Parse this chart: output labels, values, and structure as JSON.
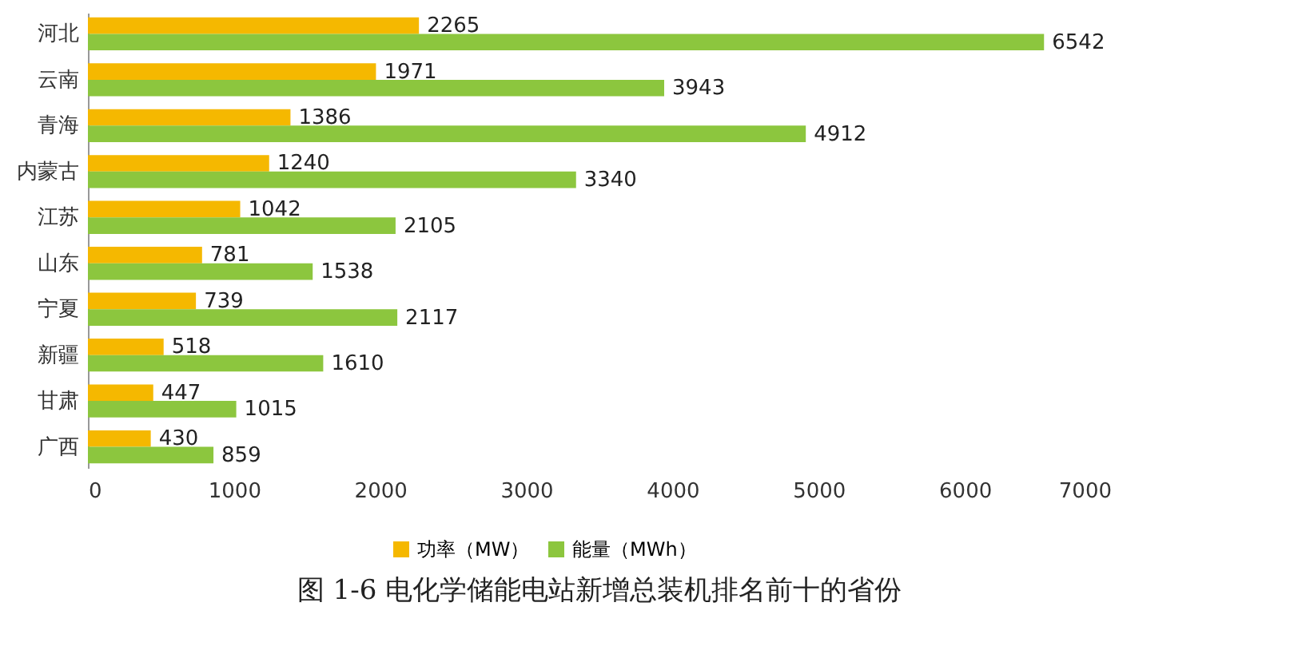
{
  "chart_data": {
    "type": "bar",
    "orientation": "horizontal",
    "title": "图 1-6 电化学储能电站新增总装机排名前十的省份",
    "categories": [
      "河北",
      "云南",
      "青海",
      "内蒙古",
      "江苏",
      "山东",
      "宁夏",
      "新疆",
      "甘肃",
      "广西"
    ],
    "series": [
      {
        "name": "功率（MW）",
        "color": "#f5b800",
        "values": [
          2265,
          1971,
          1386,
          1240,
          1042,
          781,
          739,
          518,
          447,
          430
        ]
      },
      {
        "name": "能量（MWh）",
        "color": "#8cc63e",
        "values": [
          6542,
          3943,
          4912,
          3340,
          2105,
          1538,
          2117,
          1610,
          1015,
          859
        ]
      }
    ],
    "xlim": [
      0,
      7000
    ],
    "xticks": [
      0,
      1000,
      2000,
      3000,
      4000,
      5000,
      6000,
      7000
    ],
    "grid": false,
    "legend": "bottom",
    "data_labels": true
  }
}
